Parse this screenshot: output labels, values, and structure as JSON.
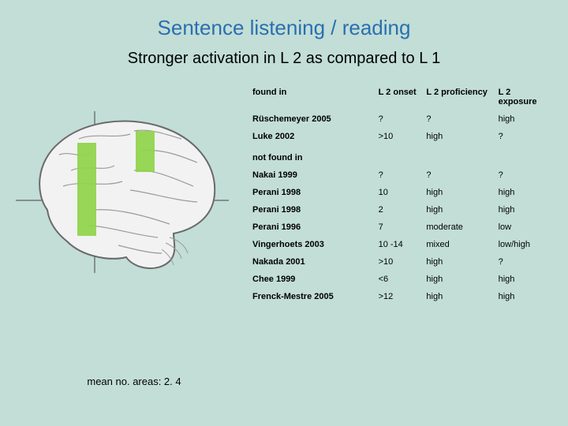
{
  "title": "Sentence listening / reading",
  "subtitle": "Stronger activation in L 2 as compared to L 1",
  "caption": "mean no. areas: 2. 4",
  "table": {
    "headers": {
      "study": "found in",
      "onset": "L 2 onset",
      "proficiency": "L 2 proficiency",
      "exposure": "L 2 exposure"
    },
    "found_label": "found in",
    "notfound_label": "not found in",
    "found_rows": [
      {
        "study": "Rüschemeyer 2005",
        "onset": "?",
        "proficiency": "?",
        "exposure": "high"
      },
      {
        "study": "Luke 2002",
        "onset": ">10",
        "proficiency": "high",
        "exposure": "?"
      }
    ],
    "notfound_rows": [
      {
        "study": "Nakai 1999",
        "onset": "?",
        "proficiency": "?",
        "exposure": "?"
      },
      {
        "study": "Perani 1998",
        "onset": "10",
        "proficiency": "high",
        "exposure": "high"
      },
      {
        "study": "Perani 1998",
        "onset": "2",
        "proficiency": "high",
        "exposure": "high"
      },
      {
        "study": "Perani 1996",
        "onset": "7",
        "proficiency": "moderate",
        "exposure": "low"
      },
      {
        "study": "Vingerhoets 2003",
        "onset": "10 -14",
        "proficiency": "mixed",
        "exposure": "low/high"
      },
      {
        "study": "Nakada 2001",
        "onset": ">10",
        "proficiency": "high",
        "exposure": "?"
      },
      {
        "study": "Chee 1999",
        "onset": "<6",
        "proficiency": "high",
        "exposure": "high"
      },
      {
        "study": "Frenck-Mestre 2005",
        "onset": ">12",
        "proficiency": "high",
        "exposure": "high"
      }
    ]
  },
  "brain": {
    "outline_color": "#6a6a6a",
    "fill_color": "#f2f2f2",
    "highlight_color": "#8fd44a",
    "grid_color": "#444",
    "background": "#c2ded6"
  }
}
